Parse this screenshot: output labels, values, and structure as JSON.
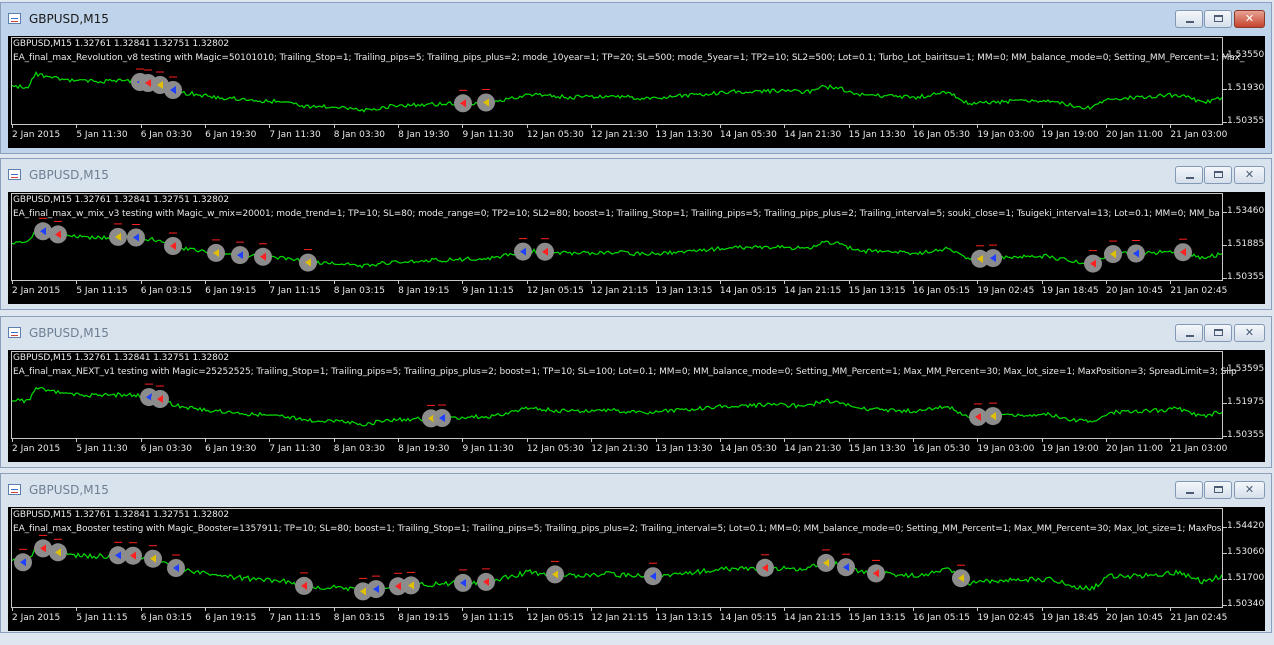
{
  "windows": [
    {
      "id": "w1",
      "state": "active",
      "title": "GBPUSD,M15",
      "symbol_line": "GBPUSD,M15  1.32761 1.32841 1.32751 1.32802",
      "ea_line": "EA_final_max_Revolution_v8 testing with Magic=50101010; Trailing_Stop=1; Trailing_pips=5; Trailing_pips_plus=2; mode_10year=1; TP=20; SL=500; mode_5year=1; TP2=10; SL2=500; Lot=0.1; Turbo_Lot_bairitsu=1; MM=0; MM_balance_mode=0; Setting_MM_Percent=1; Max_",
      "y_labels": [
        "1.53550",
        "1.51930",
        "1.50355"
      ],
      "x_labels": [
        "2 Jan 2015",
        "5 Jan 11:30",
        "6 Jan 03:30",
        "6 Jan 19:30",
        "7 Jan 11:30",
        "8 Jan 03:30",
        "8 Jan 19:30",
        "9 Jan 11:30",
        "12 Jan 05:30",
        "12 Jan 21:30",
        "13 Jan 13:30",
        "14 Jan 05:30",
        "14 Jan 21:30",
        "15 Jan 13:30",
        "16 Jan 05:30",
        "19 Jan 03:00",
        "19 Jan 19:00",
        "20 Jan 11:00",
        "21 Jan 03:00"
      ]
    },
    {
      "id": "w2",
      "state": "inactive",
      "title": "GBPUSD,M15",
      "symbol_line": "GBPUSD,M15  1.32761 1.32841 1.32751 1.32802",
      "ea_line": "EA_final_max_w_mix_v3 testing with Magic_w_mix=20001; mode_trend=1; TP=10; SL=80; mode_range=0; TP2=10; SL2=80; boost=1; Trailing_Stop=1; Trailing_pips=5; Trailing_pips_plus=2; Trailing_interval=5; souki_close=1; Tsuigeki_interval=13; Lot=0.1; MM=0; MM_ba",
      "y_labels": [
        "1.53460",
        "1.51885",
        "1.50355"
      ],
      "x_labels": [
        "2 Jan 2015",
        "5 Jan 11:15",
        "6 Jan 03:15",
        "6 Jan 19:15",
        "7 Jan 11:15",
        "8 Jan 03:15",
        "8 Jan 19:15",
        "9 Jan 11:15",
        "12 Jan 05:15",
        "12 Jan 21:15",
        "13 Jan 13:15",
        "14 Jan 05:15",
        "14 Jan 21:15",
        "15 Jan 13:15",
        "16 Jan 05:15",
        "19 Jan 02:45",
        "19 Jan 18:45",
        "20 Jan 10:45",
        "21 Jan 02:45"
      ]
    },
    {
      "id": "w3",
      "state": "inactive",
      "title": "GBPUSD,M15",
      "symbol_line": "GBPUSD,M15  1.32761 1.32841 1.32751 1.32802",
      "ea_line": "EA_final_max_NEXT_v1 testing with Magic=25252525; Trailing_Stop=1; Trailing_pips=5; Trailing_pips_plus=2; boost=1; TP=10; SL=100; Lot=0.1; MM=0; MM_balance_mode=0; Setting_MM_Percent=1; Max_MM_Percent=30; Max_lot_size=1; MaxPosition=3; SpreadLimit=3; Slip",
      "y_labels": [
        "1.53595",
        "1.51975",
        "1.50355"
      ],
      "x_labels": [
        "2 Jan 2015",
        "5 Jan 11:30",
        "6 Jan 03:30",
        "6 Jan 19:30",
        "7 Jan 11:30",
        "8 Jan 03:30",
        "8 Jan 19:30",
        "9 Jan 11:30",
        "12 Jan 05:30",
        "12 Jan 21:30",
        "13 Jan 13:30",
        "14 Jan 05:30",
        "14 Jan 21:30",
        "15 Jan 13:30",
        "16 Jan 05:30",
        "19 Jan 03:00",
        "19 Jan 19:00",
        "20 Jan 11:00",
        "21 Jan 03:00"
      ]
    },
    {
      "id": "w4",
      "state": "inactive",
      "title": "GBPUSD,M15",
      "symbol_line": "GBPUSD,M15  1.32761 1.32841 1.32751 1.32802",
      "ea_line": "EA_final_max_Booster testing with Magic_Booster=1357911; TP=10; SL=80; boost=1; Trailing_Stop=1; Trailing_pips=5; Trailing_pips_plus=2; Trailing_interval=5; Lot=0.1; MM=0; MM_balance_mode=0; Setting_MM_Percent=1; Max_MM_Percent=30; Max_lot_size=1; MaxPosi",
      "y_labels": [
        "1.54420",
        "1.53060",
        "1.51700",
        "1.50340"
      ],
      "x_labels": [
        "2 Jan 2015",
        "5 Jan 11:15",
        "6 Jan 03:15",
        "6 Jan 19:15",
        "7 Jan 11:15",
        "8 Jan 03:15",
        "8 Jan 19:15",
        "9 Jan 11:15",
        "12 Jan 05:15",
        "12 Jan 21:15",
        "13 Jan 13:15",
        "14 Jan 05:15",
        "14 Jan 21:15",
        "15 Jan 13:15",
        "16 Jan 05:15",
        "19 Jan 02:45",
        "19 Jan 18:45",
        "20 Jan 10:45",
        "21 Jan 02:45"
      ]
    }
  ],
  "colors": {
    "price_line": "#00e000",
    "trade_circle": "#8c8c8c",
    "buy_marker": "#2040ff",
    "sell_marker": "#ff2020",
    "close_marker": "#e0c000"
  }
}
